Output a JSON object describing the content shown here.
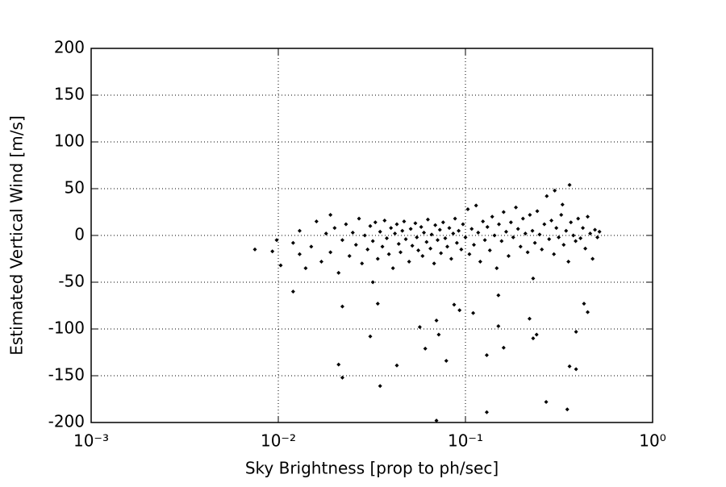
{
  "chart_data": {
    "type": "scatter",
    "xlabel": "Sky Brightness [prop to ph/sec]",
    "ylabel": "Estimated Vertical Wind [m/s]",
    "xscale": "log",
    "xlim": [
      0.001,
      1
    ],
    "xticks": [
      {
        "value": 0.001,
        "label": "10⁻³"
      },
      {
        "value": 0.01,
        "label": "10⁻²"
      },
      {
        "value": 0.1,
        "label": "10⁻¹"
      },
      {
        "value": 1,
        "label": "10⁰"
      }
    ],
    "ylim": [
      -200,
      200
    ],
    "yticks": [
      -200,
      -150,
      -100,
      -50,
      0,
      50,
      100,
      150,
      200
    ],
    "grid": true,
    "series": [
      {
        "color": "#000000",
        "x": [
          0.0075,
          0.0093,
          0.0098,
          0.0103,
          0.012,
          0.021,
          0.022,
          0.022,
          0.031,
          0.035,
          0.034,
          0.032,
          0.043,
          0.057,
          0.061,
          0.07,
          0.07,
          0.072,
          0.079,
          0.087,
          0.093,
          0.11,
          0.13,
          0.13,
          0.15,
          0.16,
          0.15,
          0.22,
          0.23,
          0.24,
          0.23,
          0.27,
          0.35,
          0.36,
          0.39,
          0.39,
          0.43,
          0.45,
          0.36,
          0.3,
          0.33,
          0.012,
          0.013,
          0.013,
          0.014,
          0.015,
          0.016,
          0.017,
          0.018,
          0.019,
          0.019,
          0.02,
          0.021,
          0.022,
          0.023,
          0.024,
          0.025,
          0.026,
          0.027,
          0.028,
          0.029,
          0.03,
          0.031,
          0.032,
          0.033,
          0.034,
          0.035,
          0.036,
          0.037,
          0.038,
          0.039,
          0.04,
          0.041,
          0.042,
          0.043,
          0.044,
          0.045,
          0.046,
          0.047,
          0.048,
          0.05,
          0.051,
          0.052,
          0.054,
          0.055,
          0.056,
          0.058,
          0.059,
          0.06,
          0.062,
          0.063,
          0.065,
          0.066,
          0.068,
          0.069,
          0.071,
          0.073,
          0.074,
          0.076,
          0.078,
          0.08,
          0.082,
          0.084,
          0.086,
          0.088,
          0.09,
          0.092,
          0.095,
          0.097,
          0.1,
          0.103,
          0.105,
          0.108,
          0.111,
          0.114,
          0.117,
          0.12,
          0.124,
          0.127,
          0.131,
          0.135,
          0.139,
          0.143,
          0.147,
          0.151,
          0.156,
          0.16,
          0.165,
          0.17,
          0.175,
          0.18,
          0.186,
          0.191,
          0.197,
          0.203,
          0.209,
          0.215,
          0.221,
          0.228,
          0.235,
          0.242,
          0.249,
          0.256,
          0.264,
          0.272,
          0.28,
          0.288,
          0.297,
          0.306,
          0.315,
          0.325,
          0.335,
          0.345,
          0.355,
          0.366,
          0.377,
          0.388,
          0.4,
          0.412,
          0.424,
          0.437,
          0.45,
          0.464,
          0.478,
          0.492,
          0.507,
          0.52
        ],
        "values": [
          -15,
          -17,
          -5,
          -32,
          -60,
          -138,
          -152,
          -76,
          -108,
          -161,
          -73,
          -50,
          -139,
          -98,
          -121,
          -91,
          -198,
          -106,
          -134,
          -74,
          -80,
          -83,
          -189,
          -128,
          -97,
          -120,
          -64,
          -89,
          -110,
          -106,
          -46,
          -178,
          -186,
          -140,
          -143,
          -103,
          -73,
          -82,
          54,
          48,
          33,
          -8,
          -20,
          5,
          -35,
          -12,
          15,
          -28,
          2,
          22,
          -18,
          8,
          -40,
          -5,
          12,
          -22,
          3,
          -10,
          18,
          -30,
          0,
          -15,
          10,
          -6,
          14,
          -25,
          4,
          -12,
          16,
          -3,
          -20,
          8,
          -35,
          2,
          12,
          -9,
          -18,
          5,
          15,
          -4,
          -28,
          7,
          -11,
          13,
          -2,
          -16,
          9,
          -22,
          3,
          -7,
          17,
          -14,
          1,
          -30,
          11,
          -5,
          6,
          -19,
          14,
          -3,
          -12,
          8,
          -25,
          2,
          18,
          -8,
          5,
          -15,
          12,
          -2,
          28,
          -20,
          7,
          -10,
          32,
          3,
          -28,
          15,
          -5,
          9,
          -16,
          20,
          0,
          -35,
          12,
          -6,
          25,
          4,
          -22,
          14,
          -2,
          30,
          7,
          -12,
          18,
          2,
          -18,
          22,
          5,
          -8,
          26,
          1,
          -15,
          12,
          42,
          -4,
          16,
          -20,
          8,
          -2,
          22,
          -10,
          5,
          -28,
          14,
          0,
          -6,
          18,
          -3,
          8,
          -14,
          20,
          2,
          -25,
          6,
          -2,
          4
        ]
      }
    ]
  }
}
